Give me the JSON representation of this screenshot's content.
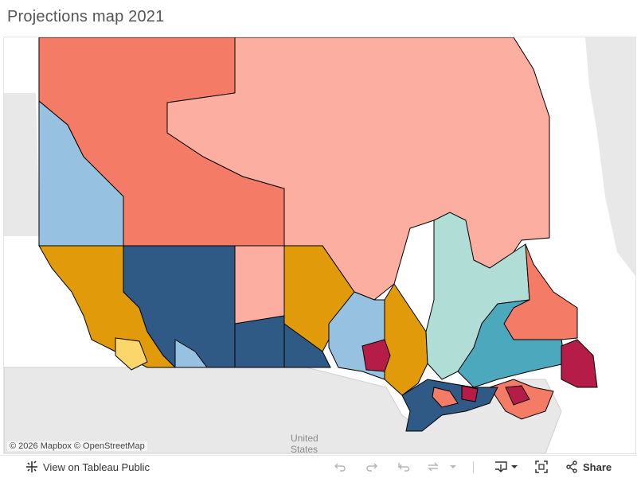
{
  "title": "Projections map 2021",
  "map": {
    "attribution": "© 2026 Mapbox  © OpenStreetMap",
    "us_label": "United",
    "us_label_line2": "States"
  },
  "toolbar": {
    "view_on_public": "View on Tableau Public",
    "share": "Share"
  },
  "colors": {
    "conservative": "#2f5a85",
    "conservative_light": "#97c1e0",
    "liberal_strong": "#f47b66",
    "liberal_light": "#fcaea0",
    "ndp": "#e09a0a",
    "green": "#fbd66b",
    "bloc_light": "#b0ddd6",
    "bloc_strong": "#4ba8bd",
    "crimson": "#b51d48",
    "water": "#ffffff",
    "land": "#e8e8e8"
  }
}
